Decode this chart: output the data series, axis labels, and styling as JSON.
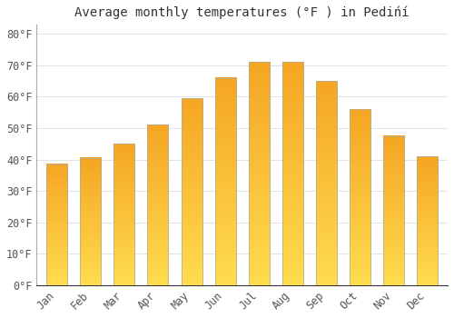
{
  "title": "Average monthly temperatures (°F ) in Pedińí",
  "months": [
    "Jan",
    "Feb",
    "Mar",
    "Apr",
    "May",
    "Jun",
    "Jul",
    "Aug",
    "Sep",
    "Oct",
    "Nov",
    "Dec"
  ],
  "values": [
    38.5,
    40.5,
    45,
    51,
    59.5,
    66,
    71,
    71,
    65,
    56,
    47.5,
    41
  ],
  "bar_color_bottom": "#F5A623",
  "bar_color_top": "#FFD966",
  "bar_edge_color": "#AAAAAA",
  "background_color": "#FFFFFF",
  "grid_color": "#DDDDDD",
  "ylim": [
    0,
    83
  ],
  "yticks": [
    0,
    10,
    20,
    30,
    40,
    50,
    60,
    70,
    80
  ],
  "title_fontsize": 10,
  "tick_fontsize": 8.5
}
